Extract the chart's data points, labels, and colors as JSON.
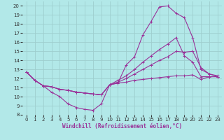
{
  "xlabel": "Windchill (Refroidissement éolien,°C)",
  "background_color": "#b2e8e8",
  "grid_color": "#9ecece",
  "line_color": "#993399",
  "xlim": [
    -0.5,
    23.5
  ],
  "ylim": [
    8,
    20.5
  ],
  "xticks": [
    0,
    1,
    2,
    3,
    4,
    5,
    6,
    7,
    8,
    9,
    10,
    11,
    12,
    13,
    14,
    15,
    16,
    17,
    18,
    19,
    20,
    21,
    22,
    23
  ],
  "yticks": [
    8,
    9,
    10,
    11,
    12,
    13,
    14,
    15,
    16,
    17,
    18,
    19,
    20
  ],
  "series": [
    [
      12.7,
      11.8,
      11.2,
      10.5,
      10.0,
      9.2,
      8.8,
      8.6,
      8.5,
      9.2,
      11.3,
      11.5,
      13.5,
      14.4,
      16.8,
      18.3,
      19.9,
      20.0,
      19.2,
      18.7,
      16.5,
      13.0,
      12.5,
      12.2
    ],
    [
      12.7,
      11.8,
      11.2,
      11.1,
      10.8,
      10.7,
      10.5,
      10.4,
      10.3,
      10.2,
      11.3,
      11.6,
      12.0,
      12.5,
      13.0,
      13.5,
      14.0,
      14.4,
      15.0,
      14.9,
      15.0,
      13.2,
      12.5,
      12.3
    ],
    [
      12.7,
      11.8,
      11.2,
      11.1,
      10.8,
      10.7,
      10.5,
      10.4,
      10.3,
      10.2,
      11.3,
      11.8,
      12.3,
      13.0,
      13.8,
      14.5,
      15.2,
      15.8,
      16.5,
      14.5,
      13.8,
      12.2,
      12.2,
      12.2
    ],
    [
      12.7,
      11.8,
      11.2,
      11.1,
      10.8,
      10.7,
      10.5,
      10.4,
      10.3,
      10.2,
      11.3,
      11.5,
      11.6,
      11.8,
      11.9,
      12.0,
      12.1,
      12.2,
      12.3,
      12.3,
      12.4,
      11.9,
      12.2,
      12.2
    ]
  ]
}
